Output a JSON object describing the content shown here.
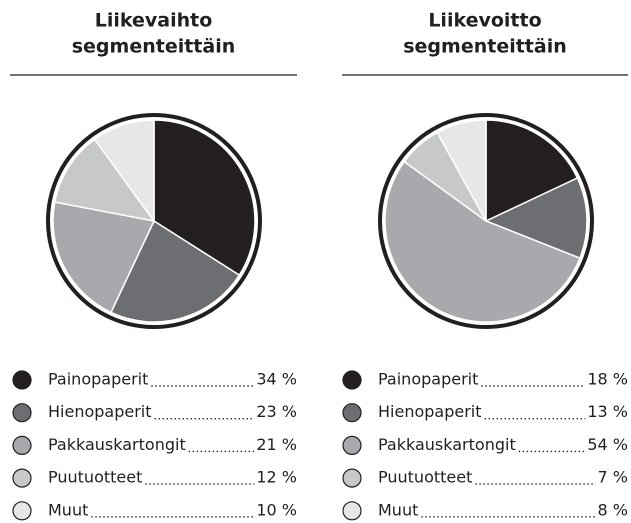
{
  "chart_data": [
    {
      "type": "pie",
      "title": [
        "Liikevaihto",
        "segmenteittäin"
      ],
      "categories": [
        "Painopaperit",
        "Hienopaperit",
        "Pakkauskartongit",
        "Puutuotteet",
        "Muut"
      ],
      "values": [
        34,
        23,
        21,
        12,
        10
      ],
      "value_labels": [
        "34 %",
        "23 %",
        "21 %",
        "12 %",
        "10 %"
      ],
      "colors": [
        "#231f20",
        "#6d6e71",
        "#a7a9ac",
        "#c7c8ca",
        "#e6e7e8"
      ]
    },
    {
      "type": "pie",
      "title": [
        "Liikevoitto",
        "segmenteittäin"
      ],
      "categories": [
        "Painopaperit",
        "Hienopaperit",
        "Pakkauskartongit",
        "Puutuotteet",
        "Muut"
      ],
      "values": [
        18,
        13,
        54,
        7,
        8
      ],
      "value_labels": [
        "18 %",
        "13 %",
        "54 %",
        "7 %",
        "8 %"
      ],
      "colors": [
        "#231f20",
        "#6d6e71",
        "#a7a9ac",
        "#c7c8ca",
        "#e6e7e8"
      ]
    }
  ]
}
